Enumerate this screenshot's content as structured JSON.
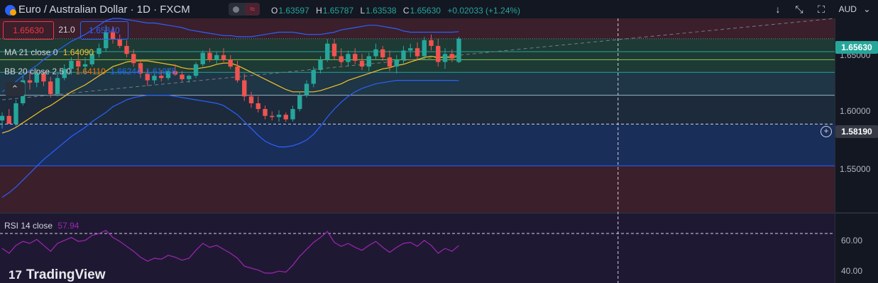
{
  "header": {
    "title": "Euro / Australian Dollar · 1D · FXCM",
    "ohlc": [
      {
        "k": "O",
        "v": "1.63597"
      },
      {
        "k": "H",
        "v": "1.65787"
      },
      {
        "k": "L",
        "v": "1.63538"
      },
      {
        "k": "C",
        "v": "1.65630"
      },
      {
        "k": "",
        "v": "+0.02033 (+1.24%)"
      }
    ],
    "wave_icon": "≈"
  },
  "trade": {
    "sell": "1.65630",
    "spread": "21.0",
    "buy": "1.65840"
  },
  "indicators": {
    "ma": {
      "label": "MA 21 close 0",
      "value": "1.64090"
    },
    "bb": {
      "label": "BB 20 close 2.5 0",
      "basis": "1.64110",
      "upper": "1.66244",
      "lower": "1.61975"
    },
    "rsi": {
      "label": "RSI 14 close",
      "value": "57.94"
    }
  },
  "toolbar": {
    "currency": "AUD",
    "down_icon": "↓",
    "expand_icon": "⤡",
    "fullscreen_icon": "⛶",
    "chevron_icon": "⌄",
    "collapse_icon": "⌃"
  },
  "price_axis": {
    "labels": [
      "1.65000",
      "1.60000",
      "1.55000"
    ],
    "current": "1.65630",
    "crosshair": "1.58190"
  },
  "rsi_axis": {
    "labels": [
      "60.00",
      "40.00"
    ]
  },
  "branding": {
    "logo_mark": "17",
    "name": "TradingView"
  },
  "colors": {
    "up": "#26a69a",
    "down": "#ef5350",
    "ma": "#f7c325",
    "bb": "#2962ff",
    "rsi": "#9c27b0",
    "bg": "#131722"
  },
  "chart_data": {
    "type": "candlestick",
    "y_range": [
      1.505,
      1.674
    ],
    "candles": [
      [
        1.585,
        1.592,
        1.578,
        1.589
      ],
      [
        1.589,
        1.595,
        1.583,
        1.582
      ],
      [
        1.582,
        1.603,
        1.58,
        1.6
      ],
      [
        1.6,
        1.624,
        1.598,
        1.62
      ],
      [
        1.62,
        1.628,
        1.612,
        1.618
      ],
      [
        1.618,
        1.63,
        1.614,
        1.626
      ],
      [
        1.626,
        1.628,
        1.615,
        1.619
      ],
      [
        1.619,
        1.623,
        1.605,
        1.608
      ],
      [
        1.608,
        1.625,
        1.606,
        1.622
      ],
      [
        1.622,
        1.634,
        1.62,
        1.63
      ],
      [
        1.63,
        1.64,
        1.625,
        1.637
      ],
      [
        1.637,
        1.643,
        1.628,
        1.632
      ],
      [
        1.632,
        1.64,
        1.626,
        1.634
      ],
      [
        1.634,
        1.645,
        1.632,
        1.643
      ],
      [
        1.643,
        1.652,
        1.64,
        1.648
      ],
      [
        1.648,
        1.668,
        1.645,
        1.662
      ],
      [
        1.662,
        1.667,
        1.652,
        1.656
      ],
      [
        1.656,
        1.66,
        1.648,
        1.65
      ],
      [
        1.65,
        1.655,
        1.64,
        1.643
      ],
      [
        1.643,
        1.647,
        1.632,
        1.635
      ],
      [
        1.635,
        1.638,
        1.622,
        1.626
      ],
      [
        1.626,
        1.629,
        1.615,
        1.62
      ],
      [
        1.62,
        1.626,
        1.617,
        1.624
      ],
      [
        1.624,
        1.629,
        1.619,
        1.622
      ],
      [
        1.622,
        1.63,
        1.62,
        1.628
      ],
      [
        1.628,
        1.634,
        1.624,
        1.625
      ],
      [
        1.625,
        1.628,
        1.619,
        1.621
      ],
      [
        1.621,
        1.625,
        1.618,
        1.624
      ],
      [
        1.624,
        1.636,
        1.622,
        1.634
      ],
      [
        1.634,
        1.646,
        1.632,
        1.644
      ],
      [
        1.644,
        1.648,
        1.636,
        1.638
      ],
      [
        1.638,
        1.645,
        1.634,
        1.642
      ],
      [
        1.642,
        1.648,
        1.636,
        1.638
      ],
      [
        1.638,
        1.642,
        1.63,
        1.632
      ],
      [
        1.632,
        1.637,
        1.618,
        1.62
      ],
      [
        1.62,
        1.626,
        1.602,
        1.606
      ],
      [
        1.606,
        1.61,
        1.596,
        1.6
      ],
      [
        1.6,
        1.606,
        1.592,
        1.595
      ],
      [
        1.595,
        1.598,
        1.586,
        1.589
      ],
      [
        1.589,
        1.593,
        1.585,
        1.588
      ],
      [
        1.588,
        1.594,
        1.584,
        1.59
      ],
      [
        1.59,
        1.592,
        1.584,
        1.586
      ],
      [
        1.586,
        1.598,
        1.584,
        1.595
      ],
      [
        1.595,
        1.61,
        1.593,
        1.607
      ],
      [
        1.607,
        1.62,
        1.605,
        1.617
      ],
      [
        1.617,
        1.632,
        1.614,
        1.629
      ],
      [
        1.629,
        1.641,
        1.626,
        1.638
      ],
      [
        1.638,
        1.656,
        1.636,
        1.652
      ],
      [
        1.652,
        1.656,
        1.638,
        1.641
      ],
      [
        1.641,
        1.648,
        1.633,
        1.636
      ],
      [
        1.636,
        1.646,
        1.632,
        1.643
      ],
      [
        1.643,
        1.648,
        1.634,
        1.637
      ],
      [
        1.637,
        1.643,
        1.629,
        1.632
      ],
      [
        1.632,
        1.644,
        1.628,
        1.641
      ],
      [
        1.641,
        1.652,
        1.638,
        1.647
      ],
      [
        1.647,
        1.65,
        1.637,
        1.64
      ],
      [
        1.64,
        1.646,
        1.628,
        1.632
      ],
      [
        1.632,
        1.642,
        1.626,
        1.638
      ],
      [
        1.638,
        1.65,
        1.634,
        1.646
      ],
      [
        1.646,
        1.652,
        1.64,
        1.648
      ],
      [
        1.648,
        1.653,
        1.637,
        1.641
      ],
      [
        1.641,
        1.658,
        1.638,
        1.655
      ],
      [
        1.655,
        1.66,
        1.646,
        1.65
      ],
      [
        1.65,
        1.656,
        1.632,
        1.636
      ],
      [
        1.636,
        1.648,
        1.63,
        1.643
      ],
      [
        1.643,
        1.647,
        1.636,
        1.639
      ],
      [
        1.636,
        1.658,
        1.635,
        1.6563
      ]
    ],
    "ma": [
      1.574,
      1.576,
      1.579,
      1.583,
      1.587,
      1.591,
      1.595,
      1.598,
      1.602,
      1.606,
      1.61,
      1.613,
      1.616,
      1.62,
      1.624,
      1.628,
      1.632,
      1.634,
      1.636,
      1.637,
      1.637,
      1.637,
      1.636,
      1.635,
      1.634,
      1.633,
      1.631,
      1.63,
      1.63,
      1.631,
      1.632,
      1.634,
      1.635,
      1.635,
      1.633,
      1.63,
      1.627,
      1.624,
      1.621,
      1.618,
      1.615,
      1.612,
      1.61,
      1.61,
      1.61,
      1.61,
      1.611,
      1.613,
      1.615,
      1.617,
      1.62,
      1.622,
      1.624,
      1.626,
      1.628,
      1.63,
      1.631,
      1.633,
      1.634,
      1.636,
      1.638,
      1.64,
      1.641,
      1.64,
      1.64,
      1.64,
      1.6409
    ],
    "bb_upper": [
      1.61,
      1.614,
      1.619,
      1.624,
      1.629,
      1.633,
      1.638,
      1.642,
      1.646,
      1.65,
      1.654,
      1.657,
      1.66,
      1.664,
      1.668,
      1.672,
      1.674,
      1.674,
      1.673,
      1.672,
      1.671,
      1.67,
      1.67,
      1.669,
      1.668,
      1.667,
      1.666,
      1.664,
      1.663,
      1.662,
      1.661,
      1.66,
      1.659,
      1.659,
      1.658,
      1.658,
      1.658,
      1.659,
      1.66,
      1.661,
      1.662,
      1.662,
      1.662,
      1.661,
      1.66,
      1.66,
      1.66,
      1.661,
      1.662,
      1.664,
      1.665,
      1.666,
      1.667,
      1.668,
      1.668,
      1.667,
      1.666,
      1.665,
      1.663,
      1.662,
      1.662,
      1.662,
      1.662,
      1.662,
      1.662,
      1.662,
      1.6624
    ],
    "bb_lower": [
      1.518,
      1.522,
      1.527,
      1.533,
      1.539,
      1.545,
      1.551,
      1.556,
      1.561,
      1.566,
      1.571,
      1.575,
      1.579,
      1.584,
      1.588,
      1.592,
      1.597,
      1.6,
      1.603,
      1.605,
      1.606,
      1.607,
      1.607,
      1.607,
      1.607,
      1.606,
      1.605,
      1.604,
      1.603,
      1.602,
      1.601,
      1.6,
      1.598,
      1.594,
      1.59,
      1.584,
      1.578,
      1.572,
      1.567,
      1.564,
      1.562,
      1.562,
      1.563,
      1.565,
      1.568,
      1.573,
      1.58,
      1.588,
      1.595,
      1.601,
      1.606,
      1.61,
      1.613,
      1.615,
      1.617,
      1.618,
      1.619,
      1.62,
      1.62,
      1.62,
      1.62,
      1.62,
      1.62,
      1.62,
      1.62,
      1.62,
      1.6198
    ],
    "rsi_range": [
      20,
      90
    ],
    "rsi": [
      55,
      50,
      58,
      62,
      60,
      64,
      58,
      52,
      60,
      63,
      66,
      62,
      63,
      68,
      70,
      73,
      66,
      62,
      57,
      52,
      46,
      42,
      45,
      44,
      48,
      46,
      43,
      45,
      53,
      60,
      56,
      58,
      54,
      50,
      45,
      37,
      35,
      33,
      30,
      30,
      32,
      31,
      38,
      47,
      54,
      61,
      66,
      72,
      61,
      57,
      60,
      56,
      53,
      58,
      62,
      56,
      51,
      56,
      60,
      61,
      57,
      63,
      58,
      50,
      55,
      52,
      57.94
    ],
    "levels": [
      {
        "price": 1.6563,
        "style": "dotted",
        "color": "#787b86"
      },
      {
        "price": 1.645,
        "style": "solid",
        "color": "#26a69a"
      },
      {
        "price": 1.638,
        "style": "solid",
        "color": "#8bc34a"
      },
      {
        "price": 1.627,
        "style": "solid",
        "color": "#26a69a"
      },
      {
        "price": 1.607,
        "style": "solid",
        "color": "#9db2bd"
      },
      {
        "price": 1.5819,
        "style": "dashed",
        "color": "#d1d4dc"
      },
      {
        "price": 1.5455,
        "style": "solid",
        "color": "#2962ff"
      }
    ],
    "trendline": {
      "from": [
        0,
        1.603
      ],
      "to_price": 1.674
    },
    "crosshair_x_index": 89
  }
}
